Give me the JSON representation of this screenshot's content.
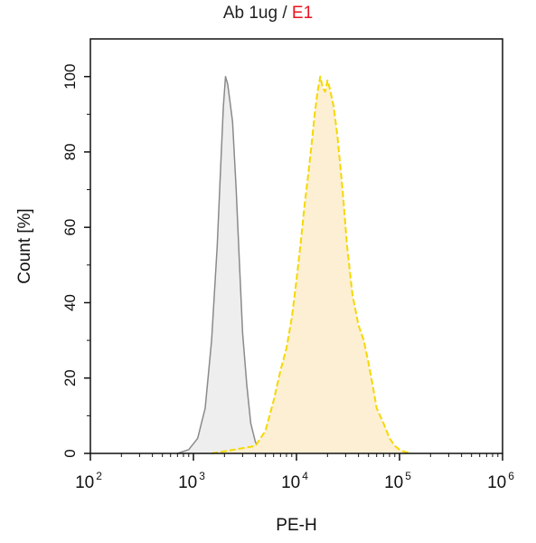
{
  "chart_data": {
    "type": "area",
    "title_part1": "Ab 1ug / ",
    "title_part2": "E1",
    "xlabel": "PE-H",
    "ylabel": "Count [%]",
    "x_scale": "log",
    "xlim": [
      100,
      1000000
    ],
    "ylim": [
      0,
      110
    ],
    "x_ticks": [
      {
        "base": "10",
        "exp": "2"
      },
      {
        "base": "10",
        "exp": "3"
      },
      {
        "base": "10",
        "exp": "4"
      },
      {
        "base": "10",
        "exp": "5"
      },
      {
        "base": "10",
        "exp": "6"
      }
    ],
    "y_ticks": [
      "0",
      "20",
      "40",
      "60",
      "80",
      "100"
    ],
    "grid": false,
    "series": [
      {
        "color": "#8a8a8a",
        "fill": "#eeeeee",
        "dashed": false,
        "x": [
          700,
          900,
          1100,
          1300,
          1500,
          1700,
          1850,
          1950,
          2050,
          2150,
          2250,
          2400,
          2600,
          2800,
          3000,
          3300,
          3600,
          4000,
          4400,
          5000
        ],
        "y": [
          0,
          1,
          4,
          12,
          30,
          55,
          78,
          92,
          100,
          98,
          94,
          88,
          70,
          50,
          32,
          18,
          8,
          3,
          1,
          0
        ]
      },
      {
        "color": "#f5d800",
        "fill": "#fcefd3",
        "dashed": true,
        "x": [
          1500,
          2500,
          4000,
          5000,
          6000,
          7000,
          8000,
          9000,
          10000,
          11000,
          12000,
          13000,
          14000,
          15000,
          16000,
          17000,
          18000,
          19000,
          20000,
          21000,
          23000,
          25000,
          28000,
          31000,
          35000,
          40000,
          45000,
          50000,
          55000,
          60000,
          70000,
          80000,
          90000,
          100000,
          110000,
          130000
        ],
        "y": [
          0,
          1,
          2,
          6,
          14,
          22,
          28,
          36,
          46,
          56,
          66,
          74,
          82,
          90,
          96,
          100,
          97,
          96,
          99,
          97,
          92,
          84,
          70,
          55,
          42,
          34,
          30,
          24,
          18,
          12,
          8,
          4,
          2,
          1,
          0.5,
          0
        ]
      }
    ]
  }
}
